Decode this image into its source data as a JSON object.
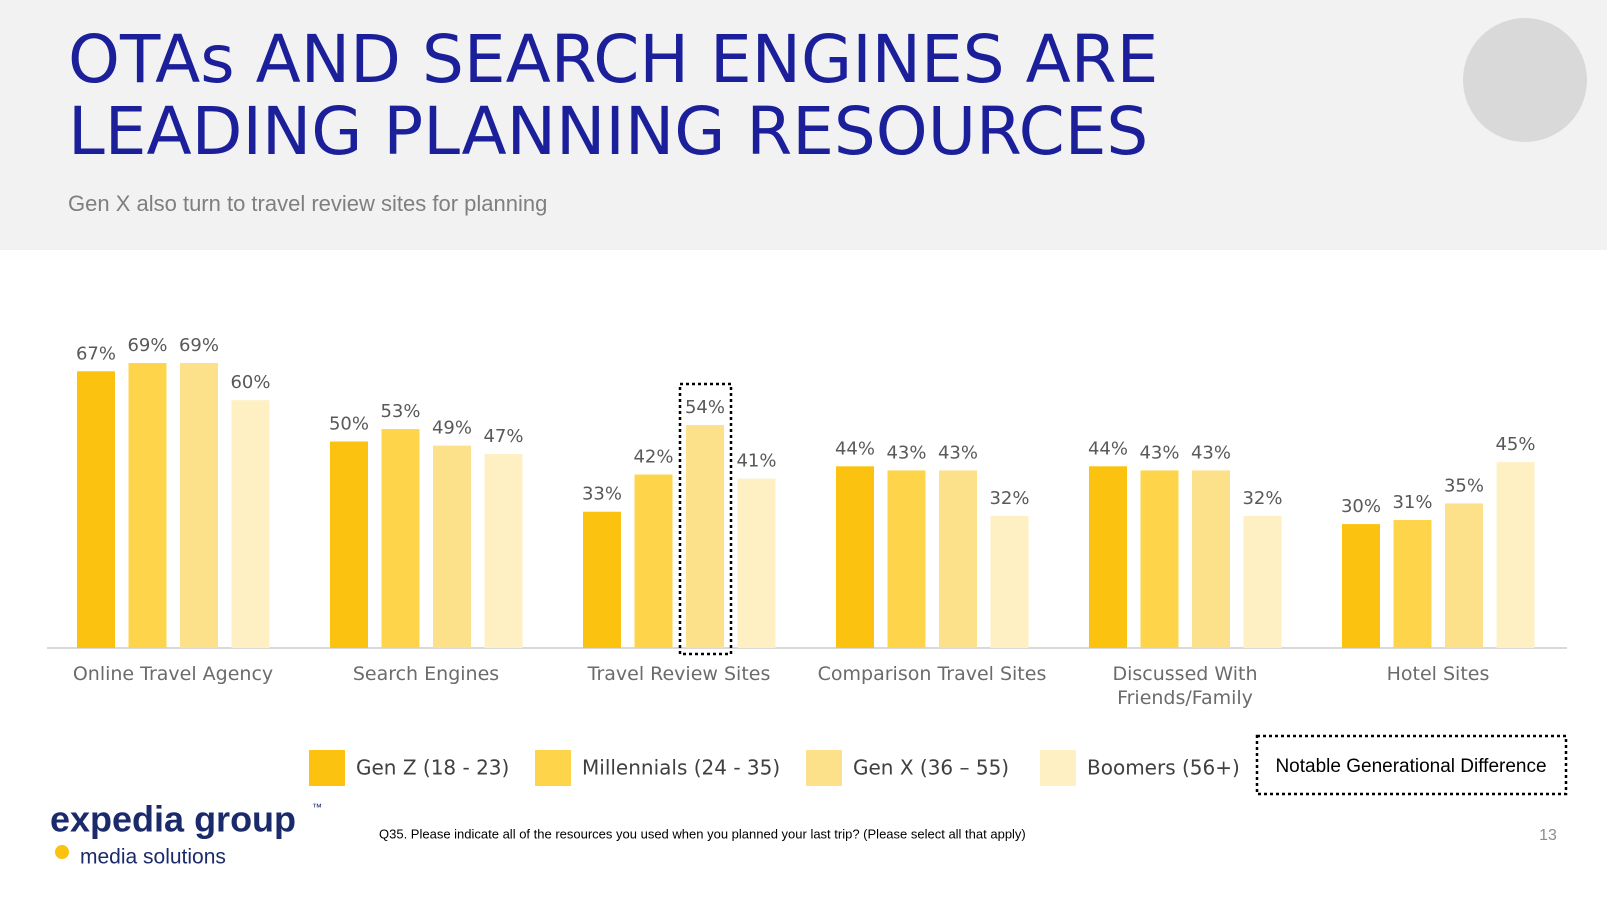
{
  "title_lines": [
    "OTAs AND SEARCH ENGINES ARE",
    "LEADING PLANNING RESOURCES"
  ],
  "subtitle": "Gen X also turn to travel review sites for planning",
  "chart_data": {
    "type": "bar",
    "categories": [
      "Online Travel Agency",
      "Search Engines",
      "Travel Review Sites",
      "Comparison Travel Sites",
      "Discussed With Friends/Family",
      "Hotel Sites"
    ],
    "series": [
      {
        "name": "Gen Z (18 - 23)",
        "color": "#fbc30f",
        "values": [
          67,
          50,
          33,
          44,
          44,
          30
        ],
        "value_labels": [
          "67%",
          "50%",
          "33%",
          "44%",
          "44%",
          "30%"
        ]
      },
      {
        "name": "Millennials (24 - 35)",
        "color": "#fdd44a",
        "values": [
          69,
          53,
          42,
          43,
          43,
          31
        ],
        "value_labels": [
          "69%",
          "53%",
          "42%",
          "43%",
          "43%",
          "31%"
        ]
      },
      {
        "name": "Gen X (36 – 55)",
        "color": "#fde08a",
        "values": [
          69,
          49,
          54,
          43,
          43,
          35
        ],
        "value_labels": [
          "69%",
          "49%",
          "54%",
          "43%",
          "43%",
          "35%"
        ]
      },
      {
        "name": "Boomers (56+)",
        "color": "#fef0c3",
        "values": [
          60,
          47,
          41,
          32,
          32,
          45
        ],
        "value_labels": [
          "60%",
          "47%",
          "41%",
          "32%",
          "32%",
          "45%"
        ]
      }
    ],
    "annotation": "Notable Generational Difference"
  },
  "footnote": "Q35. Please indicate all of the resources you used when you planned your last trip? (Please select all that apply)",
  "page_number": "13",
  "logo": {
    "brand": "expedia group",
    "tm": "™",
    "tagline": "media solutions"
  }
}
